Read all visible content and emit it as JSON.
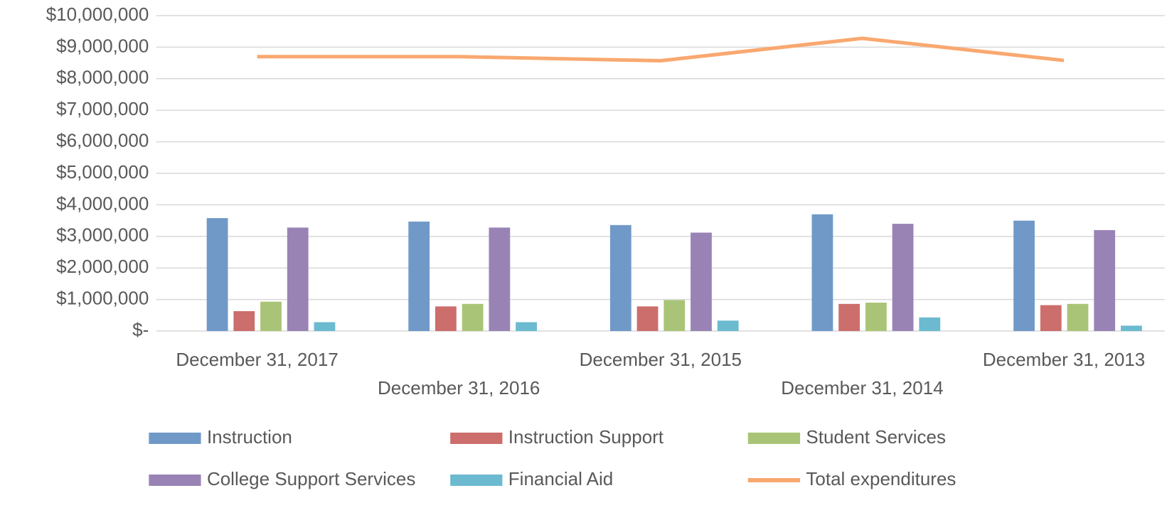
{
  "chart_data": {
    "type": "bar",
    "categories": [
      "December 31, 2017",
      "December 31, 2016",
      "December 31, 2015",
      "December 31, 2014",
      "December 31, 2013"
    ],
    "series": [
      {
        "name": "Instruction",
        "color": "#7099c8",
        "values": [
          3580000,
          3470000,
          3360000,
          3700000,
          3500000
        ]
      },
      {
        "name": "Instruction Support",
        "color": "#cc6e6c",
        "values": [
          630000,
          780000,
          780000,
          860000,
          820000
        ]
      },
      {
        "name": "Student Services",
        "color": "#a9c476",
        "values": [
          930000,
          860000,
          980000,
          900000,
          860000
        ]
      },
      {
        "name": "College Support Services",
        "color": "#9983b5",
        "values": [
          3280000,
          3280000,
          3120000,
          3400000,
          3200000
        ]
      },
      {
        "name": "Financial Aid",
        "color": "#6bbad0",
        "values": [
          280000,
          280000,
          330000,
          430000,
          170000
        ]
      },
      {
        "name": "Total expenditures",
        "color": "#f9a870",
        "type": "line",
        "values": [
          8700000,
          8700000,
          8570000,
          9280000,
          8580000
        ]
      }
    ],
    "ylim": [
      0,
      10000000
    ],
    "yticks": [
      {
        "value": 0,
        "label": "$-"
      },
      {
        "value": 1000000,
        "label": "$1,000,000"
      },
      {
        "value": 2000000,
        "label": "$2,000,000"
      },
      {
        "value": 3000000,
        "label": "$3,000,000"
      },
      {
        "value": 4000000,
        "label": "$4,000,000"
      },
      {
        "value": 5000000,
        "label": "$5,000,000"
      },
      {
        "value": 6000000,
        "label": "$6,000,000"
      },
      {
        "value": 7000000,
        "label": "$7,000,000"
      },
      {
        "value": 8000000,
        "label": "$8,000,000"
      },
      {
        "value": 9000000,
        "label": "$9,000,000"
      },
      {
        "value": 10000000,
        "label": "$10,000,000"
      }
    ],
    "grid": true,
    "legend": "bottom"
  }
}
